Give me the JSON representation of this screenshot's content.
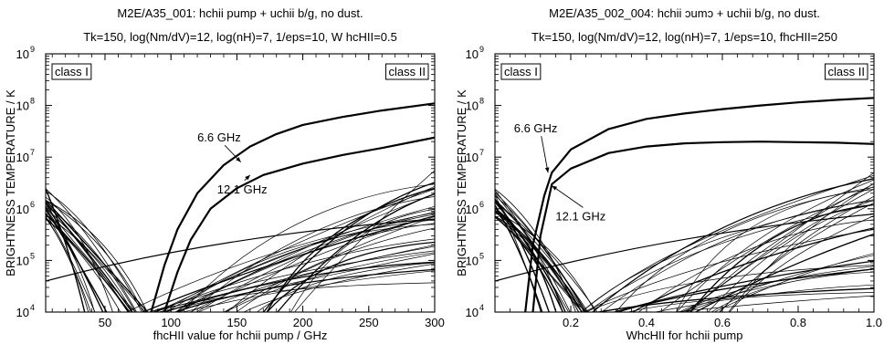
{
  "chart_data": [
    {
      "type": "line",
      "title": "M2E/A35_001:  hchii pump + uchii b/g, no dust.",
      "subtitle": "Tk=150, log(Nm/dV)=12, log(nH)=7, 1/eps=10, W hcHII=0.5",
      "xlabel": "fhcHII value for hchii pump / GHz",
      "ylabel": "BRIGHTNESS TEMPERATURE / K",
      "x_scale": "linear",
      "y_scale": "log",
      "xlim": [
        5,
        300
      ],
      "ylim": [
        10000,
        1000000000
      ],
      "xticks": [
        50,
        100,
        150,
        200,
        250,
        300
      ],
      "yticks": [
        {
          "value": 10000,
          "exp": "4"
        },
        {
          "value": 100000,
          "exp": "5"
        },
        {
          "value": 1000000,
          "exp": "6"
        },
        {
          "value": 10000000,
          "exp": "7"
        },
        {
          "value": 100000000,
          "exp": "8"
        },
        {
          "value": 1000000000,
          "exp": "9"
        }
      ],
      "class_labels": [
        "class I",
        "class II"
      ],
      "series": [
        {
          "name": "6.6 GHz",
          "emphasis": true,
          "x": [
            85,
            95,
            105,
            120,
            140,
            160,
            180,
            200,
            230,
            260,
            300
          ],
          "y": [
            10000,
            80000,
            400000,
            2000000,
            7000000,
            16000000,
            28000000,
            42000000,
            60000000,
            80000000,
            110000000
          ]
        },
        {
          "name": "12.1 GHz",
          "emphasis": true,
          "x": [
            95,
            105,
            115,
            130,
            150,
            170,
            200,
            230,
            260,
            300
          ],
          "y": [
            10000,
            60000,
            250000,
            1000000,
            2500000,
            4500000,
            7500000,
            11000000,
            15000000,
            24000000
          ]
        }
      ],
      "annotations": [
        {
          "text": "6.6 GHz",
          "x": 120,
          "y": 20000000,
          "arrow_to": [
            153,
            8000000
          ]
        },
        {
          "text": "12.1 GHz",
          "x": 135,
          "y": 2000000,
          "arrow_to": [
            160,
            4500000
          ]
        }
      ]
    },
    {
      "type": "line",
      "title": "M2E/A35_002_004:  hchii ɔumɔ + uchii b/g, no dust.",
      "subtitle": "Tk=150, log(Nm/dV)=12, log(nH)=7, 1/eps=10,  fhcHII=250",
      "xlabel": "WhcHII   for hchii pump",
      "ylabel": "BRIGHTNESS TEMPERATURE / K",
      "x_scale": "linear",
      "y_scale": "log",
      "xlim": [
        0,
        1.0
      ],
      "ylim": [
        10000,
        1000000000
      ],
      "xticks": [
        0.2,
        0.4,
        0.6,
        0.8,
        1.0
      ],
      "xtick_labels": [
        "0.2",
        "0.4",
        "0.6",
        "0.8",
        "1.0"
      ],
      "yticks": [
        {
          "value": 10000,
          "exp": "4"
        },
        {
          "value": 100000,
          "exp": "5"
        },
        {
          "value": 1000000,
          "exp": "6"
        },
        {
          "value": 10000000,
          "exp": "7"
        },
        {
          "value": 100000000,
          "exp": "8"
        },
        {
          "value": 1000000000,
          "exp": "9"
        }
      ],
      "class_labels": [
        "class I",
        "class II"
      ],
      "series": [
        {
          "name": "6.6 GHz",
          "emphasis": true,
          "x": [
            0.08,
            0.1,
            0.13,
            0.15,
            0.2,
            0.3,
            0.4,
            0.5,
            0.6,
            0.7,
            0.8,
            0.9,
            1.0
          ],
          "y": [
            10000,
            200000,
            1800000,
            5000000,
            14000000,
            35000000,
            55000000,
            70000000,
            85000000,
            100000000,
            115000000,
            128000000,
            140000000
          ]
        },
        {
          "name": "12.1 GHz",
          "emphasis": true,
          "x": [
            0.1,
            0.12,
            0.15,
            0.2,
            0.3,
            0.4,
            0.5,
            0.6,
            0.7,
            0.8,
            0.9,
            1.0
          ],
          "y": [
            10000,
            300000,
            3000000,
            6000000,
            12000000,
            16000000,
            18500000,
            19500000,
            20000000,
            19500000,
            19000000,
            18000000
          ]
        }
      ],
      "annotations": [
        {
          "text": "6.6 GHz",
          "x": 0.05,
          "y": 30000000,
          "arrow_to": [
            0.14,
            5000000
          ]
        },
        {
          "text": "12.1 GHz",
          "x": 0.16,
          "y": 600000,
          "arrow_to": [
            0.15,
            2800000
          ]
        }
      ]
    }
  ]
}
